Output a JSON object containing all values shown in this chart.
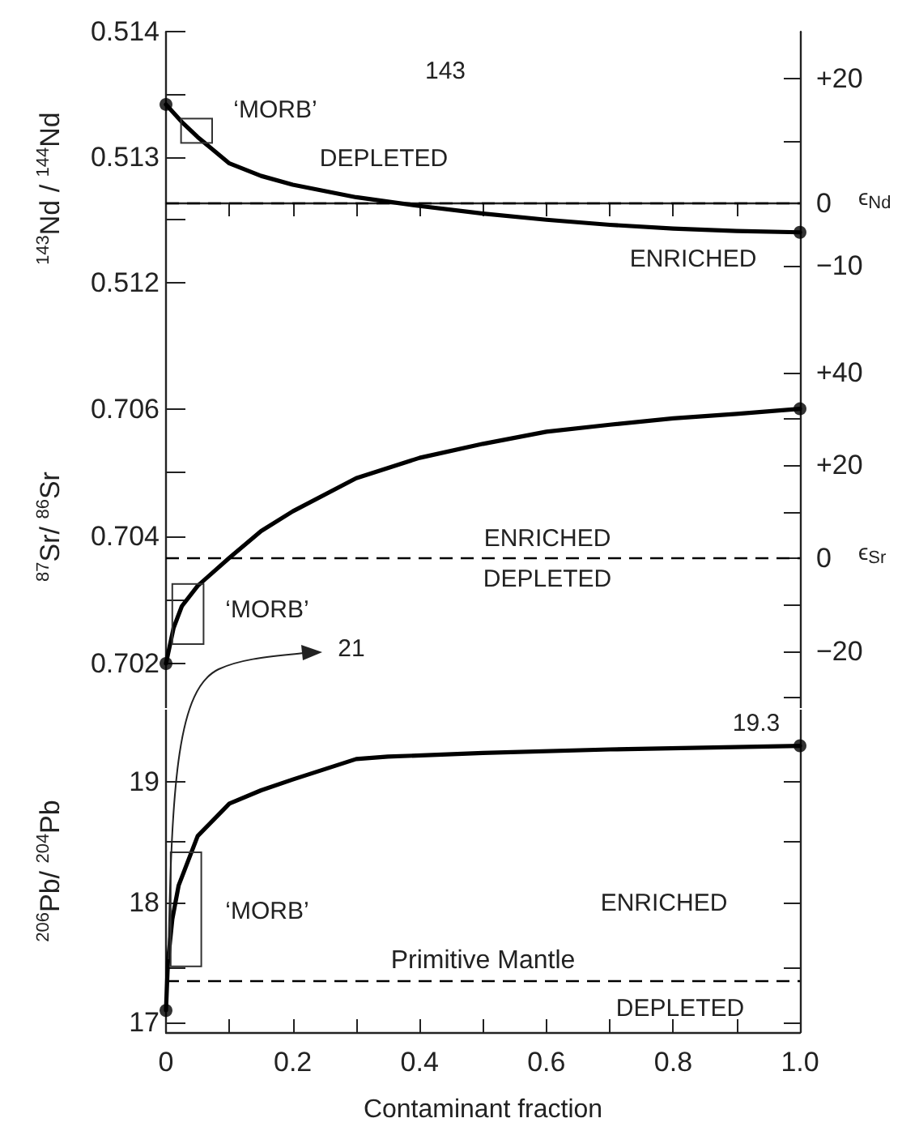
{
  "chart_data": [
    {
      "type": "line",
      "ylabel": "$^{143}$Nd / $^{144}$Nd",
      "y2label": "ϵ$_{Nd}$",
      "xlim": [
        0,
        1
      ],
      "xticks": [
        0,
        {
          "value": 0.1,
          "label": null
        },
        {
          "value": 0.2,
          "label": null
        },
        {
          "value": 0.3,
          "label": null
        },
        {
          "value": 0.4,
          "label": null
        },
        {
          "value": 0.5,
          "label": null
        },
        {
          "value": 0.6,
          "label": null
        },
        {
          "value": 0.7,
          "label": null
        },
        {
          "value": 0.8,
          "label": null
        },
        {
          "value": 0.9,
          "label": null
        },
        {
          "value": 1,
          "label": null
        }
      ],
      "ylim": [
        0.5115,
        0.514
      ],
      "yticks": [
        0.512,
        {
          "value": 0.5125,
          "label": null
        },
        0.513,
        {
          "value": 0.5135,
          "label": null
        },
        0.514
      ],
      "y2lim": [
        -22.7,
        27.5
      ],
      "y2ticks": [
        {
          "value": -10,
          "label": "−10"
        },
        0,
        {
          "value": 10,
          "label": null
        },
        {
          "value": 20,
          "label": "+20"
        }
      ],
      "tick_labels": "y",
      "series": [
        {
          "color": "#000000",
          "marker": "none",
          "x": [
            0,
            0.025,
            0.05,
            0.1,
            0.15,
            0.2,
            0.3,
            0.4,
            0.5,
            0.6,
            0.7,
            0.8,
            0.9,
            1
          ],
          "values": [
            0.51342,
            0.51328,
            0.51316,
            0.51295,
            0.51285,
            0.51278,
            0.51268,
            0.51261,
            0.51255,
            0.5125,
            0.51246,
            0.51243,
            0.51241,
            0.5124
          ]
        },
        {
          "type": "scatter",
          "color": "#000000",
          "marker": "circle",
          "x": [
            0,
            1
          ],
          "values": [
            0.51342,
            0.5124
          ]
        }
      ],
      "ref_lines": [
        {
          "axis": "y2",
          "value": 0,
          "line_style": "dashed",
          "color": "#000000"
        }
      ],
      "annotations": [
        "143",
        "‘MORB’",
        "DEPLETED",
        "ENRICHED"
      ]
    },
    {
      "type": "line",
      "ylabel": "$^{87}$Sr/ $^{86}$Sr",
      "y2label": "ϵ$_{Sr}$",
      "xlim": [
        0,
        1
      ],
      "ylim": [
        0.7013,
        0.707
      ],
      "yticks": [
        0.702,
        {
          "value": 0.703,
          "label": null
        },
        0.704,
        {
          "value": 0.705,
          "label": null
        },
        0.706
      ],
      "y2lim": [
        -32.3,
        45.9
      ],
      "y2ticks": [
        {
          "value": -30,
          "label": null
        },
        {
          "value": -20,
          "label": "−20"
        },
        {
          "value": -10,
          "label": null
        },
        0,
        {
          "value": 10,
          "label": null
        },
        {
          "value": 20,
          "label": "+20"
        },
        {
          "value": 30,
          "label": null
        },
        {
          "value": 40,
          "label": "+40"
        }
      ],
      "tick_labels": "y",
      "series": [
        {
          "color": "#000000",
          "marker": "none",
          "x": [
            0,
            0.012,
            0.025,
            0.05,
            0.1,
            0.15,
            0.2,
            0.3,
            0.4,
            0.5,
            0.6,
            0.7,
            0.8,
            0.9,
            1
          ],
          "values": [
            0.702,
            0.70256,
            0.7029,
            0.70322,
            0.70366,
            0.70408,
            0.70439,
            0.70491,
            0.70523,
            0.70545,
            0.70564,
            0.70575,
            0.70585,
            0.70592,
            0.706
          ]
        },
        {
          "type": "scatter",
          "color": "#000000",
          "marker": "circle",
          "x": [
            0,
            1
          ],
          "values": [
            0.702,
            0.706
          ]
        }
      ],
      "ref_lines": [
        {
          "axis": "y2",
          "value": 0,
          "line_style": "dashed",
          "color": "#000000"
        }
      ],
      "annotations": [
        "ENRICHED",
        "DEPLETED",
        "‘MORB’",
        "21"
      ]
    },
    {
      "type": "line",
      "ylabel": "$^{206}$Pb/ $^{204}$Pb",
      "xlabel": "Contaminant fraction",
      "xlim": [
        0,
        1
      ],
      "xticks": [
        0,
        {
          "value": 0.1,
          "label": null
        },
        0.2,
        {
          "value": 0.3,
          "label": null
        },
        0.4,
        {
          "value": 0.5,
          "label": null
        },
        0.6,
        {
          "value": 0.7,
          "label": null
        },
        0.8,
        {
          "value": 0.9,
          "label": null
        },
        {
          "value": 1,
          "label": "1.0"
        }
      ],
      "ylim": [
        16.92,
        19.6
      ],
      "yticks": [
        17,
        {
          "value": 17.45,
          "label": null
        },
        18,
        {
          "value": 18.5,
          "label": null
        },
        19
      ],
      "series": [
        {
          "color": "#000000",
          "marker": "none",
          "x": [
            0,
            0.003,
            0.01,
            0.02,
            0.05,
            0.1,
            0.15,
            0.2,
            0.3,
            0.35,
            0.5,
            0.7,
            1
          ],
          "values": [
            17.1,
            17.5,
            17.86,
            18.14,
            18.55,
            18.82,
            18.93,
            19.02,
            19.19,
            19.21,
            19.24,
            19.27,
            19.3
          ]
        },
        {
          "type": "scatter",
          "color": "#000000",
          "marker": "circle",
          "x": [
            0,
            1
          ],
          "values": [
            17.1,
            19.3
          ]
        }
      ],
      "ref_lines": [
        {
          "axis": "y",
          "value": 17.35,
          "label": "Primitive Mantle",
          "line_style": "dashed",
          "color": "#000000"
        }
      ],
      "annotations": [
        "19.3",
        "ENRICHED",
        "‘MORB’",
        "DEPLETED"
      ]
    }
  ]
}
